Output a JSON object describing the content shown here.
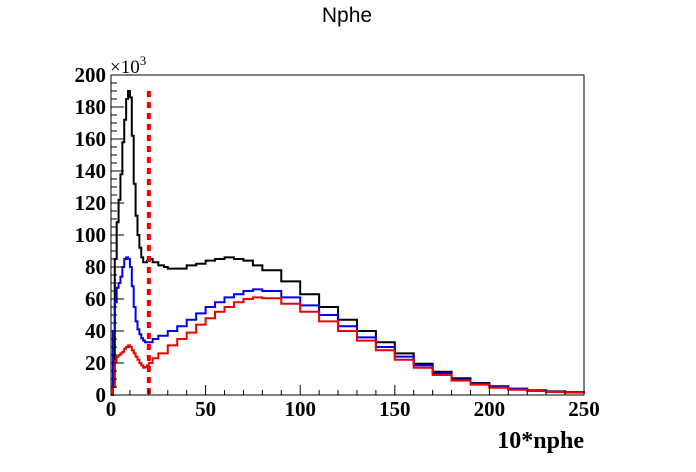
{
  "chart_data": {
    "type": "line",
    "title": "Nphe",
    "xlabel": "10*nphe",
    "ylabel": "",
    "y_multiplier_label": "×10",
    "y_multiplier_exponent": "3",
    "xlim": [
      0,
      250
    ],
    "ylim": [
      0,
      200
    ],
    "x_ticks": [
      "0",
      "50",
      "100",
      "150",
      "200",
      "250"
    ],
    "y_ticks": [
      "0",
      "20",
      "40",
      "60",
      "80",
      "100",
      "120",
      "140",
      "160",
      "180",
      "200"
    ],
    "grid": false,
    "legend": "none",
    "series": [
      {
        "color": "#000000",
        "style": "step",
        "points": [
          [
            0,
            0
          ],
          [
            1,
            8
          ],
          [
            2,
            85
          ],
          [
            3,
            108
          ],
          [
            4,
            122
          ],
          [
            5,
            138
          ],
          [
            6,
            158
          ],
          [
            7,
            172
          ],
          [
            8,
            185
          ],
          [
            9,
            190
          ],
          [
            10,
            186
          ],
          [
            11,
            162
          ],
          [
            12,
            132
          ],
          [
            13,
            112
          ],
          [
            14,
            100
          ],
          [
            15,
            92
          ],
          [
            16,
            86
          ],
          [
            17,
            83
          ],
          [
            18,
            83
          ],
          [
            19,
            84
          ],
          [
            20,
            85
          ],
          [
            22,
            83
          ],
          [
            25,
            81
          ],
          [
            28,
            80
          ],
          [
            30,
            79
          ],
          [
            35,
            79
          ],
          [
            40,
            81
          ],
          [
            45,
            82
          ],
          [
            50,
            84
          ],
          [
            55,
            85
          ],
          [
            60,
            86
          ],
          [
            65,
            85
          ],
          [
            70,
            84
          ],
          [
            75,
            81
          ],
          [
            80,
            78
          ],
          [
            90,
            71
          ],
          [
            100,
            63
          ],
          [
            110,
            55
          ],
          [
            120,
            47
          ],
          [
            130,
            40
          ],
          [
            140,
            33
          ],
          [
            150,
            26
          ],
          [
            160,
            19.5
          ],
          [
            170,
            14.5
          ],
          [
            180,
            10.5
          ],
          [
            190,
            7.5
          ],
          [
            200,
            5.5
          ],
          [
            210,
            4
          ],
          [
            220,
            3
          ],
          [
            230,
            2.3
          ],
          [
            240,
            1.8
          ],
          [
            250,
            1.4
          ]
        ]
      },
      {
        "color": "#0000ee",
        "style": "step",
        "points": [
          [
            0,
            0
          ],
          [
            1,
            40
          ],
          [
            2,
            58
          ],
          [
            3,
            67
          ],
          [
            4,
            70
          ],
          [
            5,
            74
          ],
          [
            6,
            80
          ],
          [
            7,
            85
          ],
          [
            8,
            86
          ],
          [
            9,
            85
          ],
          [
            10,
            80
          ],
          [
            11,
            68
          ],
          [
            12,
            55
          ],
          [
            13,
            46
          ],
          [
            14,
            41
          ],
          [
            15,
            38
          ],
          [
            16,
            35.5
          ],
          [
            17,
            34
          ],
          [
            18,
            33
          ],
          [
            19,
            33
          ],
          [
            20,
            33
          ],
          [
            22,
            35
          ],
          [
            25,
            37
          ],
          [
            30,
            40
          ],
          [
            35,
            43
          ],
          [
            40,
            47
          ],
          [
            45,
            51
          ],
          [
            50,
            55
          ],
          [
            55,
            58
          ],
          [
            60,
            61
          ],
          [
            65,
            63
          ],
          [
            70,
            65
          ],
          [
            75,
            66
          ],
          [
            80,
            65
          ],
          [
            90,
            61
          ],
          [
            100,
            56
          ],
          [
            110,
            50
          ],
          [
            120,
            43
          ],
          [
            130,
            36
          ],
          [
            140,
            30
          ],
          [
            150,
            24
          ],
          [
            160,
            18.5
          ],
          [
            170,
            13.5
          ],
          [
            180,
            9.5
          ],
          [
            190,
            7
          ],
          [
            200,
            5
          ],
          [
            210,
            3.8
          ],
          [
            220,
            2.8
          ],
          [
            230,
            2.1
          ],
          [
            240,
            1.6
          ],
          [
            250,
            1.3
          ]
        ]
      },
      {
        "color": "#ee0000",
        "style": "step",
        "points": [
          [
            0,
            0
          ],
          [
            1,
            5
          ],
          [
            2,
            21
          ],
          [
            3,
            24
          ],
          [
            4,
            25
          ],
          [
            5,
            26
          ],
          [
            6,
            27
          ],
          [
            7,
            29
          ],
          [
            8,
            30
          ],
          [
            9,
            31
          ],
          [
            10,
            30
          ],
          [
            11,
            28
          ],
          [
            12,
            26
          ],
          [
            13,
            24
          ],
          [
            14,
            22
          ],
          [
            15,
            20
          ],
          [
            16,
            18.5
          ],
          [
            17,
            17
          ],
          [
            18,
            17.5
          ],
          [
            19,
            18.5
          ],
          [
            20,
            20
          ],
          [
            22,
            23
          ],
          [
            25,
            26
          ],
          [
            30,
            31
          ],
          [
            35,
            35
          ],
          [
            40,
            39
          ],
          [
            45,
            44
          ],
          [
            50,
            48
          ],
          [
            55,
            52
          ],
          [
            60,
            55
          ],
          [
            65,
            58
          ],
          [
            70,
            60
          ],
          [
            75,
            61
          ],
          [
            80,
            60.5
          ],
          [
            90,
            57
          ],
          [
            100,
            52
          ],
          [
            110,
            46
          ],
          [
            120,
            40
          ],
          [
            130,
            34
          ],
          [
            140,
            28
          ],
          [
            150,
            22
          ],
          [
            160,
            17
          ],
          [
            170,
            12.5
          ],
          [
            180,
            9
          ],
          [
            190,
            6.5
          ],
          [
            200,
            4.5
          ],
          [
            210,
            3.3
          ],
          [
            220,
            2.5
          ],
          [
            230,
            1.9
          ],
          [
            240,
            1.5
          ],
          [
            250,
            1.2
          ]
        ]
      }
    ],
    "vertical_line": {
      "x": 20,
      "color": "#ee0000",
      "style": "dashed"
    }
  }
}
